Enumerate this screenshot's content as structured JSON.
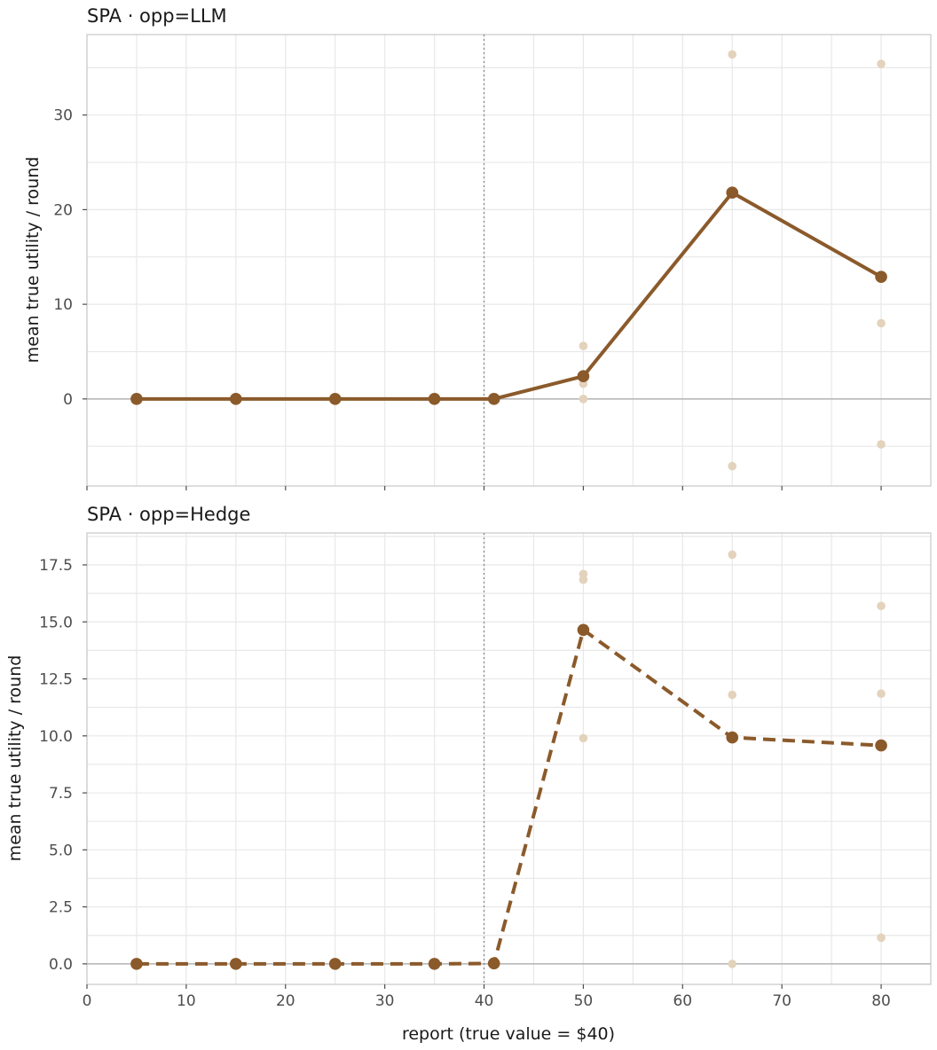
{
  "chart_data": [
    {
      "type": "line",
      "title": "SPA · opp=LLM",
      "ylabel": "mean true utility / round",
      "xlabel": "",
      "xlim": [
        0,
        85
      ],
      "ylim": [
        -9.2,
        38.5
      ],
      "x_ticks": [
        0,
        10,
        20,
        30,
        40,
        50,
        60,
        70,
        80
      ],
      "x_tick_labels_shown": false,
      "y_ticks": [
        0,
        10,
        20,
        30
      ],
      "y_tick_labels": [
        "0",
        "10",
        "20",
        "30"
      ],
      "reference_vline_x": 40,
      "reference_hline_y": 0,
      "line_style": "solid",
      "series": [
        {
          "x": [
            5,
            15,
            25,
            35,
            41,
            50,
            65,
            80
          ],
          "values": [
            0,
            0,
            0,
            0,
            0,
            2.4,
            21.8,
            12.9
          ]
        }
      ],
      "individual_points": [
        {
          "x": 50,
          "y": 5.6
        },
        {
          "x": 50,
          "y": 1.6
        },
        {
          "x": 50,
          "y": 0
        },
        {
          "x": 65,
          "y": 36.4
        },
        {
          "x": 65,
          "y": -7.1
        },
        {
          "x": 80,
          "y": 35.4
        },
        {
          "x": 80,
          "y": 8.0
        },
        {
          "x": 80,
          "y": -4.8
        }
      ],
      "grid": true
    },
    {
      "type": "line",
      "title": "SPA · opp=Hedge",
      "ylabel": "mean true utility / round",
      "xlabel": "report (true value = $40)",
      "xlim": [
        0,
        85
      ],
      "ylim": [
        -0.9,
        18.9
      ],
      "x_ticks": [
        0,
        10,
        20,
        30,
        40,
        50,
        60,
        70,
        80
      ],
      "x_tick_labels": [
        "0",
        "10",
        "20",
        "30",
        "40",
        "50",
        "60",
        "70",
        "80"
      ],
      "x_tick_labels_shown": true,
      "y_ticks": [
        0,
        2.5,
        5,
        7.5,
        10,
        12.5,
        15,
        17.5
      ],
      "y_tick_labels": [
        "0.0",
        "2.5",
        "5.0",
        "7.5",
        "10.0",
        "12.5",
        "15.0",
        "17.5"
      ],
      "reference_vline_x": 40,
      "reference_hline_y": 0,
      "line_style": "dashed",
      "series": [
        {
          "x": [
            5,
            15,
            25,
            35,
            41,
            50,
            65,
            80
          ],
          "values": [
            0,
            0,
            0,
            0,
            0.02,
            14.65,
            9.93,
            9.58
          ]
        }
      ],
      "individual_points": [
        {
          "x": 50,
          "y": 17.1
        },
        {
          "x": 50,
          "y": 16.85
        },
        {
          "x": 50,
          "y": 9.9
        },
        {
          "x": 65,
          "y": 17.95
        },
        {
          "x": 65,
          "y": 11.8
        },
        {
          "x": 65,
          "y": 0
        },
        {
          "x": 80,
          "y": 15.7
        },
        {
          "x": 80,
          "y": 11.85
        },
        {
          "x": 80,
          "y": 1.15
        }
      ],
      "grid": true
    }
  ],
  "colors": {
    "line": "#8b5a2b",
    "points_faint": "#e3d2bc",
    "grid": "#e8e8e8",
    "frame": "#cfcfcf",
    "zero_line": "#b3b3b3",
    "reference_line": "#8a8a8a"
  }
}
